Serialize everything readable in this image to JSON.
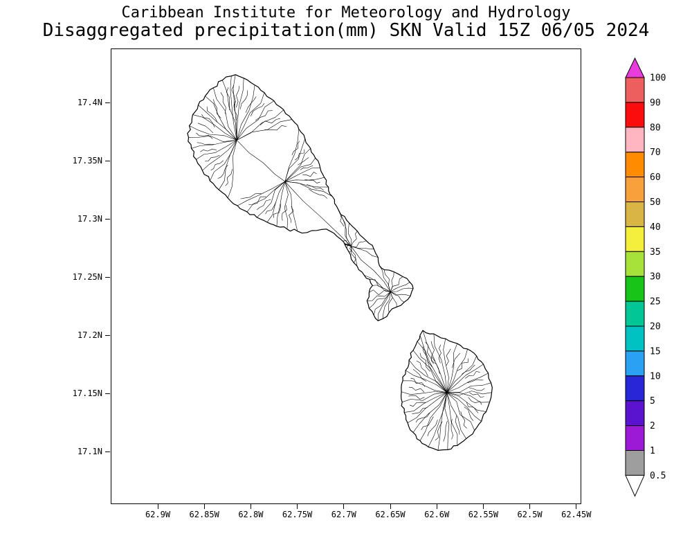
{
  "header": {
    "line1": "Caribbean Institute for Meteorology and Hydrology",
    "line2": "Disaggregated precipitation(mm) SKN Valid 15Z 06/05 2024"
  },
  "axes": {
    "y_tick_labels": [
      "17.4N",
      "17.35N",
      "17.3N",
      "17.25N",
      "17.2N",
      "17.15N",
      "17.1N"
    ],
    "x_tick_labels": [
      "62.9W",
      "62.85W",
      "62.8W",
      "62.75W",
      "62.7W",
      "62.65W",
      "62.6W",
      "62.55W",
      "62.5W",
      "62.45W"
    ]
  },
  "colorbar": {
    "labels": [
      "100",
      "90",
      "80",
      "70",
      "60",
      "50",
      "40",
      "35",
      "30",
      "25",
      "20",
      "15",
      "10",
      "5",
      "2",
      "1",
      "0.5"
    ],
    "segment_colors": [
      "#ed5f5f",
      "#fc0d0d",
      "#ffb6c1",
      "#ff8c00",
      "#f8a03c",
      "#d8b544",
      "#f3ef3c",
      "#a7e23a",
      "#17c417",
      "#00c795",
      "#00c2c2",
      "#2aa1f2",
      "#2727d8",
      "#5a14cf",
      "#9c1ad6",
      "#9e9e9e"
    ],
    "arrow_top_color": "#e93cdc",
    "arrow_bottom_color": "#ffffff",
    "outline_color": "#000000"
  },
  "map": {
    "line_color": "#000000",
    "background_color": "#ffffff"
  }
}
